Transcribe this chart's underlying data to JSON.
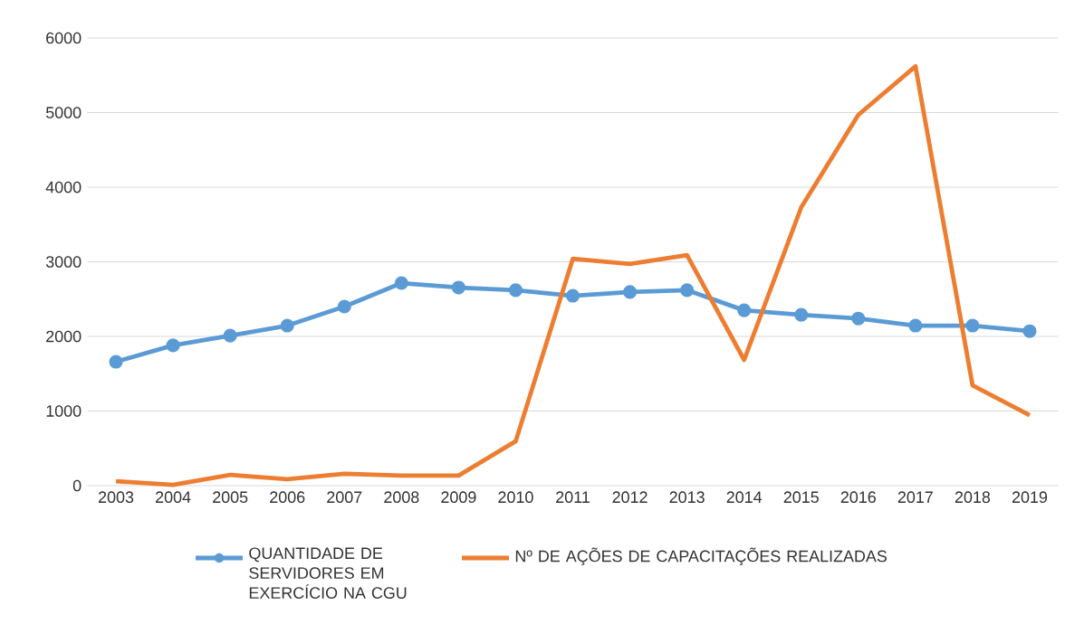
{
  "chart_data": {
    "type": "line",
    "categories": [
      "2003",
      "2004",
      "2005",
      "2006",
      "2007",
      "2008",
      "2009",
      "2010",
      "2011",
      "2012",
      "2013",
      "2014",
      "2015",
      "2016",
      "2017",
      "2018",
      "2019"
    ],
    "series": [
      {
        "name": "QUANTIDADE DE SERVIDORES EM EXERCÍCIO NA CGU",
        "color": "#5b9bd5",
        "marker": "circle",
        "values": [
          1660,
          1880,
          2010,
          2145,
          2400,
          2715,
          2655,
          2620,
          2545,
          2595,
          2620,
          2350,
          2290,
          2240,
          2145,
          2145,
          2070
        ]
      },
      {
        "name": "Nº DE AÇÕES DE CAPACITAÇÕES REALIZADAS",
        "color": "#ed7d31",
        "marker": "none",
        "values": [
          60,
          10,
          145,
          85,
          160,
          135,
          135,
          595,
          3040,
          2970,
          3090,
          1685,
          3730,
          4970,
          5620,
          1345,
          945
        ]
      }
    ],
    "ylim": [
      0,
      6000
    ],
    "yticks": [
      0,
      1000,
      2000,
      3000,
      4000,
      5000,
      6000
    ],
    "grid": "y",
    "legend": "bottom"
  }
}
